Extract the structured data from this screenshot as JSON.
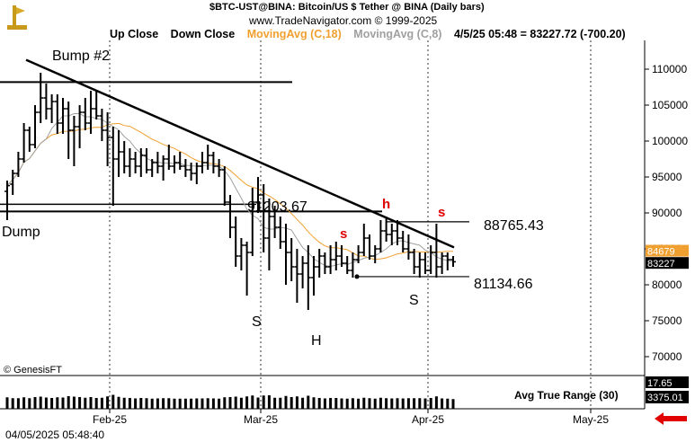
{
  "header": {
    "line1": "$BTC-UST@BINA:  Bitcoin/US $ Tether @ BINA  (Daily bars)",
    "line2": "www.TradeNavigator.com © 1999-2025"
  },
  "legend": {
    "up_close": "Up Close",
    "down_close": "Down Close",
    "ma18": "MovingAvg (C,18)",
    "ma8": "MovingAvg (C,8)",
    "readout": "4/5/25 05:48 = 83227.72 (-700.20)"
  },
  "colors": {
    "ma18": "#f0a030",
    "ma8": "#a0a0a0",
    "price_tag_ma": "#f0a030",
    "arrow": "#e00000",
    "annotation_red": "#e00000"
  },
  "footer": {
    "timestamp": "04/05/2025 05:48:40",
    "copyright": "© GenesisFT"
  },
  "indicator": {
    "label": "Avg True Range (30)",
    "value_top": "17.65",
    "value": "3375.01"
  },
  "chart_data": {
    "type": "ohlc",
    "y_ticks": [
      70000,
      75000,
      80000,
      85000,
      90000,
      95000,
      100000,
      105000,
      110000
    ],
    "y_tick_labels": [
      "70000",
      "75000",
      "80000",
      "85000",
      "90000",
      "95000",
      "100000",
      "105000",
      "110000"
    ],
    "ylim": [
      67500,
      114000
    ],
    "x_ticks": [
      "Feb-25",
      "Mar-25",
      "Apr-25",
      "May-25"
    ],
    "price_tags": {
      "ma18": "84679",
      "last": "83227"
    },
    "annotations": {
      "bump2": "Bump #2",
      "dump": "Dump",
      "left_shoulder": "S",
      "head": "H",
      "right_shoulder": "S",
      "small_h": "h",
      "small_s1": "s",
      "small_s2": "s",
      "level_mid": "91203.67",
      "level_high": "88765.43",
      "level_low": "81134.66"
    },
    "bars": [
      [
        93000,
        94500,
        89000,
        93800
      ],
      [
        94000,
        96000,
        92500,
        95500
      ],
      [
        95500,
        98500,
        95000,
        97500
      ],
      [
        97500,
        102500,
        97000,
        101500
      ],
      [
        101500,
        102000,
        98500,
        99500
      ],
      [
        99500,
        105000,
        99000,
        104000
      ],
      [
        104000,
        109500,
        102500,
        106000
      ],
      [
        106000,
        108000,
        103000,
        104500
      ],
      [
        104500,
        106500,
        102500,
        105500
      ],
      [
        105500,
        106500,
        101000,
        102500
      ],
      [
        102500,
        106000,
        101000,
        104500
      ],
      [
        104500,
        105500,
        97500,
        101500
      ],
      [
        101500,
        103500,
        96500,
        102000
      ],
      [
        102000,
        105000,
        99000,
        104000
      ],
      [
        104000,
        106000,
        101500,
        102500
      ],
      [
        102500,
        107000,
        101000,
        104500
      ],
      [
        104500,
        107000,
        103000,
        103500
      ],
      [
        103500,
        104500,
        100000,
        101500
      ],
      [
        101500,
        104000,
        96500,
        100500
      ],
      [
        100500,
        102000,
        91000,
        97500
      ],
      [
        97500,
        101500,
        95000,
        98500
      ],
      [
        98500,
        100000,
        95500,
        96500
      ],
      [
        96500,
        99000,
        95000,
        97500
      ],
      [
        97500,
        98500,
        95500,
        96500
      ],
      [
        96500,
        99000,
        95000,
        98000
      ],
      [
        98000,
        99000,
        95500,
        96000
      ],
      [
        96000,
        97500,
        95000,
        97000
      ],
      [
        97000,
        98500,
        95500,
        96500
      ],
      [
        96500,
        98000,
        94500,
        97500
      ],
      [
        97500,
        99500,
        96000,
        96500
      ],
      [
        96500,
        98000,
        95500,
        97000
      ],
      [
        97000,
        98500,
        96000,
        96500
      ],
      [
        96500,
        97500,
        95000,
        96000
      ],
      [
        96000,
        97000,
        94500,
        95500
      ],
      [
        95500,
        97000,
        94000,
        96500
      ],
      [
        96500,
        98500,
        95500,
        97000
      ],
      [
        97000,
        99500,
        96000,
        98000
      ],
      [
        98000,
        98500,
        95500,
        96500
      ],
      [
        96500,
        97500,
        95000,
        96000
      ],
      [
        96000,
        96500,
        91000,
        91500
      ],
      [
        91500,
        92500,
        86500,
        88000
      ],
      [
        88000,
        89500,
        82500,
        84000
      ],
      [
        84000,
        86500,
        82000,
        85500
      ],
      [
        85500,
        86000,
        78500,
        84500
      ],
      [
        84500,
        93500,
        84000,
        91500
      ],
      [
        91500,
        95000,
        90000,
        92500
      ],
      [
        92500,
        94000,
        84500,
        86500
      ],
      [
        86500,
        92000,
        82000,
        89500
      ],
      [
        89500,
        91000,
        86500,
        88000
      ],
      [
        88000,
        89500,
        85000,
        86000
      ],
      [
        86000,
        88500,
        80000,
        84500
      ],
      [
        84500,
        86500,
        80500,
        82500
      ],
      [
        82500,
        85000,
        77500,
        81500
      ],
      [
        81500,
        84000,
        79500,
        83000
      ],
      [
        83000,
        85500,
        76500,
        81000
      ],
      [
        81000,
        84000,
        78500,
        82500
      ],
      [
        82500,
        85000,
        81000,
        84000
      ],
      [
        84000,
        84500,
        81500,
        82500
      ],
      [
        82500,
        85500,
        81500,
        83500
      ],
      [
        83500,
        86000,
        82000,
        84000
      ],
      [
        84000,
        85500,
        82500,
        83000
      ],
      [
        83000,
        84000,
        81500,
        82000
      ],
      [
        82000,
        84500,
        81000,
        83500
      ],
      [
        83500,
        85500,
        83000,
        84500
      ],
      [
        84500,
        88500,
        84000,
        86500
      ],
      [
        86500,
        87000,
        83500,
        84000
      ],
      [
        84000,
        85500,
        83000,
        85000
      ],
      [
        85000,
        89000,
        84500,
        87500
      ],
      [
        87500,
        89500,
        86000,
        87000
      ],
      [
        87000,
        88500,
        85500,
        87500
      ],
      [
        87500,
        89000,
        85500,
        86500
      ],
      [
        86500,
        87500,
        84500,
        85000
      ],
      [
        85000,
        87000,
        83500,
        84500
      ],
      [
        84500,
        85000,
        81500,
        82500
      ],
      [
        82500,
        84500,
        81000,
        83500
      ],
      [
        83500,
        84500,
        81500,
        82000
      ],
      [
        82000,
        85500,
        81500,
        84500
      ],
      [
        84500,
        88500,
        81000,
        82500
      ],
      [
        82500,
        84500,
        81500,
        84000
      ],
      [
        84000,
        84500,
        82000,
        83500
      ],
      [
        83500,
        84000,
        82500,
        83200
      ]
    ]
  }
}
